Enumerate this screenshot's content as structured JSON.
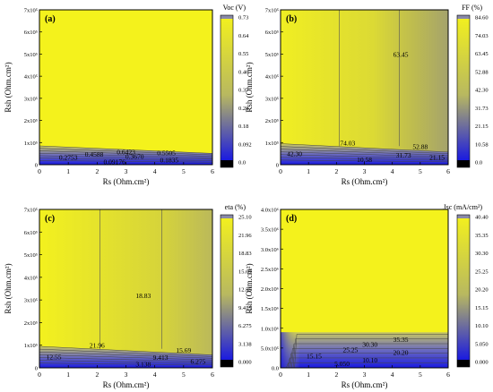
{
  "colors": {
    "yellow": "#f4f21c",
    "blue": "#1a1ae0",
    "black": "#000000",
    "grey": "#808080",
    "frame": "#000000"
  },
  "chart_data": [
    {
      "panel": "(a)",
      "type": "heatmap",
      "quantity_label": "Voc (V)",
      "xlabel": "Rs (Ohm.cm²)",
      "ylabel": "Rsh (Ohm.cm²)",
      "xlim": [
        0,
        6
      ],
      "ylim": [
        0,
        700000
      ],
      "xticks": [
        "0",
        "1",
        "2",
        "3",
        "4",
        "5",
        "6"
      ],
      "yticks": [
        "0",
        "1x10⁵",
        "2x10⁵",
        "3x10⁵",
        "4x10⁵",
        "5x10⁵",
        "6x10⁵",
        "7x10⁵"
      ],
      "colorbar": {
        "range": [
          0,
          0.73
        ],
        "ticks": [
          "0.73",
          "0.64",
          "0.55",
          "0.46",
          "0.37",
          "0.28",
          "0.18",
          "0.092",
          "0.0"
        ]
      },
      "contour_labels": [
        {
          "text": "0.6423",
          "x": 3.0,
          "y": 58000
        },
        {
          "text": "0.5505",
          "x": 4.4,
          "y": 54000
        },
        {
          "text": "0.4588",
          "x": 1.9,
          "y": 48000
        },
        {
          "text": "0.3670",
          "x": 3.3,
          "y": 38000
        },
        {
          "text": "0.2753",
          "x": 1.0,
          "y": 35000
        },
        {
          "text": "0.1835",
          "x": 4.5,
          "y": 22000
        },
        {
          "text": "0.09176",
          "x": 2.6,
          "y": 15000
        }
      ]
    },
    {
      "panel": "(b)",
      "type": "heatmap",
      "quantity_label": "FF (%)",
      "xlabel": "Rs (Ohm.cm²)",
      "ylabel": "Rsh (Ohm.cm²)",
      "xlim": [
        0,
        6
      ],
      "ylim": [
        0,
        700000
      ],
      "xticks": [
        "0",
        "1",
        "2",
        "3",
        "4",
        "5",
        "6"
      ],
      "yticks": [
        "0",
        "1x10⁵",
        "2x10⁵",
        "3x10⁵",
        "4x10⁵",
        "5x10⁵",
        "6x10⁵",
        "7x10⁵"
      ],
      "colorbar": {
        "range": [
          0,
          84.6
        ],
        "ticks": [
          "84.60",
          "74.03",
          "63.45",
          "52.88",
          "42.30",
          "31.73",
          "21.15",
          "10.58",
          "0.0"
        ]
      },
      "contour_labels": [
        {
          "text": "63.45",
          "x": 4.3,
          "y": 500000
        },
        {
          "text": "74.03",
          "x": 2.4,
          "y": 100000
        },
        {
          "text": "52.88",
          "x": 5.0,
          "y": 83000
        },
        {
          "text": "42.30",
          "x": 0.5,
          "y": 50000
        },
        {
          "text": "31.73",
          "x": 4.4,
          "y": 45000
        },
        {
          "text": "21.15",
          "x": 5.6,
          "y": 35000
        },
        {
          "text": "10.58",
          "x": 3.0,
          "y": 25000
        }
      ]
    },
    {
      "panel": "(c)",
      "type": "heatmap",
      "quantity_label": "eta (%)",
      "xlabel": "Rs (Ohm.cm²)",
      "ylabel": "Rsh (Ohm.cm²)",
      "xlim": [
        0,
        6
      ],
      "ylim": [
        0,
        700000
      ],
      "xticks": [
        "0",
        "1",
        "2",
        "3",
        "4",
        "5",
        "6"
      ],
      "yticks": [
        "0",
        "1x10⁵",
        "2x10⁵",
        "3x10⁵",
        "4x10⁵",
        "5x10⁵",
        "6x10⁵",
        "7x10⁵"
      ],
      "colorbar": {
        "range": [
          0,
          25.1
        ],
        "ticks": [
          "25.10",
          "21.96",
          "18.83",
          "15.69",
          "12.55",
          "9.413",
          "6.275",
          "3.138",
          "0.000"
        ]
      },
      "contour_labels": [
        {
          "text": "18.83",
          "x": 3.6,
          "y": 320000
        },
        {
          "text": "21.96",
          "x": 2.0,
          "y": 100000
        },
        {
          "text": "15.69",
          "x": 5.0,
          "y": 80000
        },
        {
          "text": "12.55",
          "x": 0.5,
          "y": 50000
        },
        {
          "text": "9.413",
          "x": 4.2,
          "y": 48000
        },
        {
          "text": "6.275",
          "x": 5.5,
          "y": 30000
        },
        {
          "text": "3.138",
          "x": 3.6,
          "y": 18000
        }
      ]
    },
    {
      "panel": "(d)",
      "type": "heatmap",
      "quantity_label": "Jsc (mA/cm²)",
      "xlabel": "Rs (Ohm.cm²)",
      "ylabel": "Rsh (Ohm.cm²)",
      "xlim": [
        0,
        6
      ],
      "ylim": [
        0,
        4000000
      ],
      "xticks": [
        "0",
        "1",
        "2",
        "3",
        "4",
        "5",
        "6"
      ],
      "yticks": [
        "0.0",
        "5.0x10⁵",
        "1.0x10⁶",
        "1.5x10⁶",
        "2.0x10⁶",
        "2.5x10⁶",
        "3.0x10⁶",
        "3.5x10⁶",
        "4.0x10⁶"
      ],
      "colorbar": {
        "range": [
          0,
          40.4
        ],
        "ticks": [
          "40.40",
          "35.35",
          "30.30",
          "25.25",
          "20.20",
          "15.15",
          "10.10",
          "5.050",
          "0.000"
        ]
      },
      "contour_labels": [
        {
          "text": "35.35",
          "x": 4.3,
          "y": 720000
        },
        {
          "text": "30.30",
          "x": 3.2,
          "y": 600000
        },
        {
          "text": "25.25",
          "x": 2.5,
          "y": 460000
        },
        {
          "text": "20.20",
          "x": 4.3,
          "y": 400000
        },
        {
          "text": "15.15",
          "x": 1.2,
          "y": 300000
        },
        {
          "text": "10.10",
          "x": 3.2,
          "y": 200000
        },
        {
          "text": "5.050",
          "x": 2.2,
          "y": 110000
        }
      ]
    }
  ]
}
